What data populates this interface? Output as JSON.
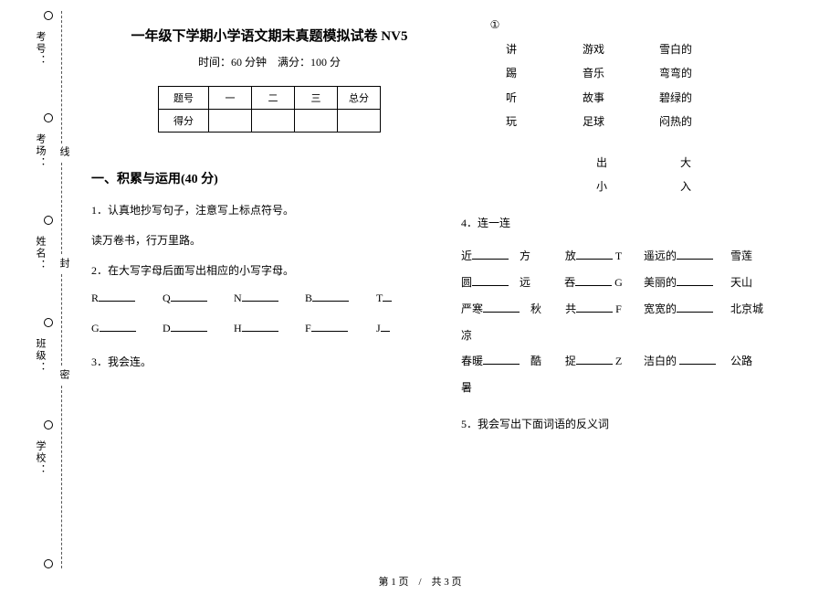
{
  "sidebar": {
    "labels": [
      "考号：",
      "考场：",
      "姓名：",
      "班级：",
      "学校："
    ],
    "dashmarks": [
      "线",
      "封",
      "密"
    ]
  },
  "left": {
    "title": "一年级下学期小学语文期末真题模拟试卷 NV5",
    "subtitle": "时间：60 分钟　满分：100 分",
    "table": {
      "headers": [
        "题号",
        "一",
        "二",
        "三",
        "总分"
      ],
      "row2": "得分"
    },
    "section1": "一、积累与运用(40 分)",
    "q1": "1．认真地抄写句子，注意写上标点符号。",
    "q1t": "读万卷书，行万里路。",
    "q2": "2．在大写字母后面写出相应的小写字母。",
    "row_a": [
      "R",
      "Q",
      "N",
      "B",
      "T"
    ],
    "row_b": [
      "G",
      "D",
      "H",
      "F",
      "J"
    ],
    "q3": "3．我会连。"
  },
  "right": {
    "circled": "①",
    "matrix": [
      [
        "讲",
        "游戏",
        "雪白的"
      ],
      [
        "踢",
        "音乐",
        "弯弯的"
      ],
      [
        "听",
        "故事",
        "碧绿的"
      ],
      [
        "玩",
        "足球",
        "闷热的"
      ]
    ],
    "pair1": [
      "出",
      "大"
    ],
    "pair2": [
      "小",
      "入"
    ],
    "q4": "4．连一连",
    "match": [
      {
        "a": "近",
        "b": "方",
        "m": "放______ T",
        "c": "遥远的",
        "d": "雪莲"
      },
      {
        "a": "圆",
        "b": "远",
        "m": "吞______ G",
        "c": "美丽的",
        "d": "天山"
      },
      {
        "a": "严寒",
        "b": "秋凉",
        "m": "共______ F",
        "c": "宽宽的",
        "d": "北京城"
      },
      {
        "a": "春暖",
        "b": "酷暑",
        "m": "捉______ Z",
        "c": "洁白的",
        "d": "公路"
      }
    ],
    "q5": "5．我会写出下面词语的反义词"
  },
  "pagenum": "第 1 页　/　共 3 页"
}
